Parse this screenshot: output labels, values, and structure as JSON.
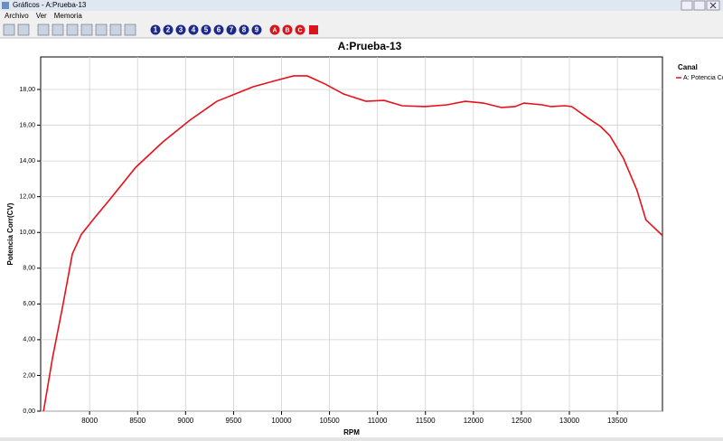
{
  "window": {
    "title": "Gráficos - A:Prueba-13",
    "menu": [
      "Archivo",
      "Ver",
      "Memoria"
    ],
    "toolbar_numbers": [
      "1",
      "2",
      "3",
      "4",
      "5",
      "6",
      "7",
      "8",
      "9"
    ],
    "toolbar_letters": [
      "A",
      "B",
      "C"
    ]
  },
  "chart_data": {
    "type": "line",
    "title": "A:Prueba-13",
    "x_label": "RPM",
    "y_label": "Potencia Corr(CV)",
    "legend_title": "Canal",
    "legend": "top-right",
    "grid": true,
    "x": [
      7520,
      7614,
      7717,
      7820,
      7915,
      8057,
      8198,
      8480,
      8763,
      9045,
      9327,
      9704,
      9940,
      10127,
      10268,
      10456,
      10644,
      10880,
      11068,
      11256,
      11492,
      11727,
      11915,
      12104,
      12292,
      12433,
      12527,
      12716,
      12810,
      12951,
      13026,
      13186,
      13327,
      13421,
      13563,
      13704,
      13798,
      13968
    ],
    "series": [
      {
        "name": "A: Potencia Corr",
        "color": "#e8101a",
        "values": [
          0,
          3.0,
          5.8,
          8.8,
          9.9,
          10.85,
          11.76,
          13.64,
          15.06,
          16.28,
          17.34,
          18.15,
          18.5,
          18.76,
          18.76,
          18.3,
          17.75,
          17.34,
          17.39,
          17.09,
          17.04,
          17.14,
          17.34,
          17.24,
          16.99,
          17.04,
          17.24,
          17.14,
          17.04,
          17.09,
          17.04,
          16.43,
          15.92,
          15.42,
          14.15,
          12.37,
          10.7,
          9.84
        ]
      }
    ],
    "xlim": [
      7490,
      13970
    ],
    "xticks": [
      8000,
      8500,
      9000,
      9500,
      10000,
      10500,
      11000,
      11500,
      12000,
      12500,
      13000,
      13500
    ],
    "ylim": [
      0,
      19.82
    ],
    "yticks": [
      {
        "value": 0,
        "label": "0,00"
      },
      {
        "value": 2,
        "label": "2,00"
      },
      {
        "value": 4,
        "label": "4,00"
      },
      {
        "value": 6,
        "label": "6,00"
      },
      {
        "value": 8,
        "label": "8,00"
      },
      {
        "value": 10,
        "label": "10,00"
      },
      {
        "value": 12,
        "label": "12,00"
      },
      {
        "value": 14,
        "label": "14,00"
      },
      {
        "value": 16,
        "label": "16,00"
      },
      {
        "value": 18,
        "label": "18,00"
      }
    ]
  }
}
